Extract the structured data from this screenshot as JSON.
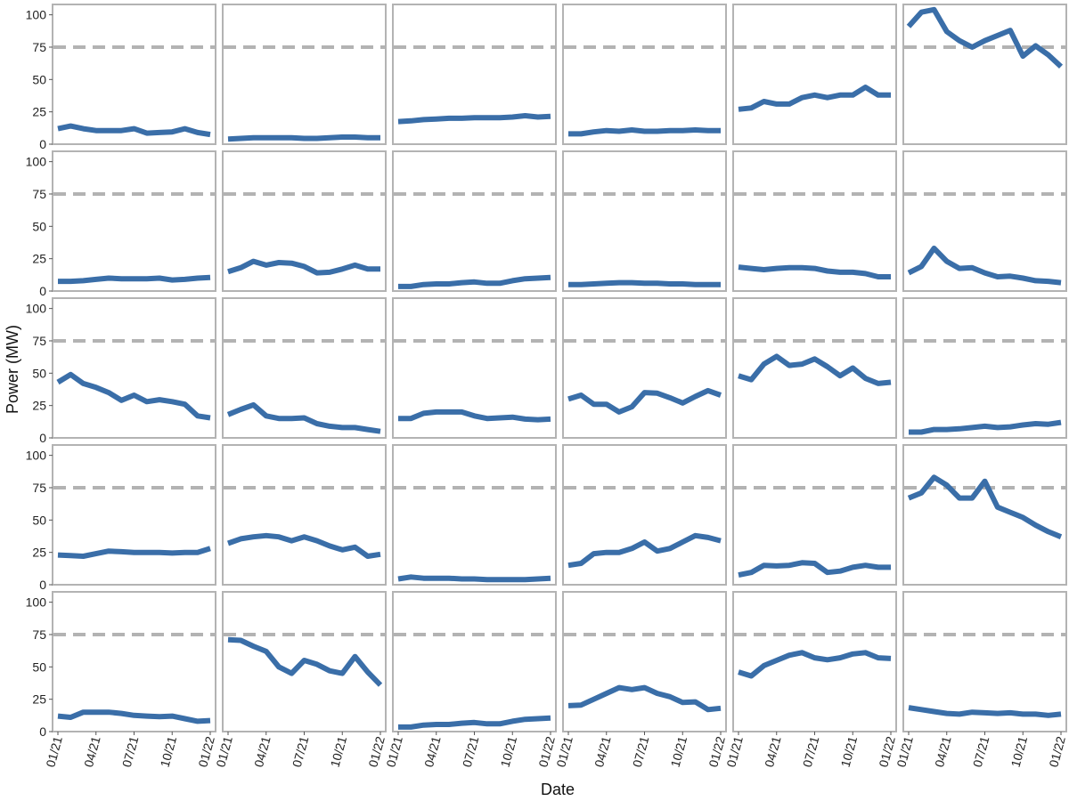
{
  "chart_data": {
    "type": "line",
    "layout": "small-multiples grid, 5 rows x 6 columns, shared axes",
    "xlabel": "Date",
    "ylabel": "Power (MW)",
    "x_tick_labels": [
      "01/21",
      "04/21",
      "07/21",
      "10/21",
      "01/22"
    ],
    "xlim": [
      "2021-01-01",
      "2022-01-01"
    ],
    "x": [
      "2021-01-01",
      "2021-02-01",
      "2021-03-01",
      "2021-04-01",
      "2021-05-01",
      "2021-06-01",
      "2021-07-01",
      "2021-08-01",
      "2021-09-01",
      "2021-10-01",
      "2021-11-01",
      "2021-12-01",
      "2022-01-01"
    ],
    "y_ticks": [
      0,
      25,
      50,
      75,
      100
    ],
    "ylim": [
      0,
      108
    ],
    "reference_line": {
      "value": 75,
      "style": "dashed"
    },
    "grid": false,
    "colors": {
      "series": "#3a6ea8",
      "reference": "#b3b3b3",
      "panel_border": "#b3b3b3"
    },
    "panels": [
      {
        "values": [
          12,
          14,
          12,
          10.5,
          10.5,
          10.5,
          12,
          8.5,
          9,
          9.5,
          12,
          9,
          7.5
        ]
      },
      {
        "values": [
          4,
          4.5,
          5,
          5,
          5,
          5,
          4.5,
          4.5,
          5,
          5.5,
          5.5,
          5,
          5
        ]
      },
      {
        "values": [
          17.5,
          18,
          19,
          19.5,
          20,
          20,
          20.5,
          20.5,
          20.5,
          21,
          22,
          21,
          21.5
        ]
      },
      {
        "values": [
          8,
          8,
          9.5,
          10.5,
          10,
          11,
          10,
          10,
          10.5,
          10.5,
          11,
          10.5,
          10.5
        ]
      },
      {
        "values": [
          27,
          28,
          33,
          31,
          31,
          36,
          38,
          36,
          38,
          38,
          44,
          38,
          38
        ]
      },
      {
        "values": [
          91,
          102,
          104,
          87,
          80,
          75,
          80,
          84,
          88,
          68,
          76,
          69,
          60
        ]
      },
      {
        "values": [
          7.5,
          7.5,
          8,
          9,
          10,
          9.5,
          9.5,
          9.5,
          10,
          8.5,
          9,
          10,
          10.5
        ]
      },
      {
        "values": [
          15,
          18,
          23,
          20,
          22,
          21.5,
          19,
          14,
          14.5,
          17,
          20,
          17,
          17
        ]
      },
      {
        "values": [
          3.5,
          3.5,
          5,
          5.5,
          5.5,
          6.5,
          7,
          6,
          6,
          8,
          9.5,
          10,
          10.5
        ]
      },
      {
        "values": [
          5,
          5,
          5.5,
          6,
          6.5,
          6.5,
          6,
          6,
          5.5,
          5.5,
          5,
          5,
          5
        ]
      },
      {
        "values": [
          18.5,
          17.5,
          16.5,
          17.5,
          18,
          18,
          17.5,
          15.5,
          14.5,
          14.5,
          13.5,
          11,
          11
        ]
      },
      {
        "values": [
          14,
          19,
          33,
          23,
          17.5,
          18,
          14,
          11,
          11.5,
          10,
          8,
          7.5,
          6.5
        ]
      },
      {
        "values": [
          43,
          49,
          42,
          39,
          35,
          29,
          33,
          28,
          29.5,
          28,
          26,
          17,
          15.5
        ]
      },
      {
        "values": [
          18,
          22,
          25.5,
          17,
          15,
          15,
          15.5,
          11,
          9,
          8,
          8,
          6.5,
          5
        ]
      },
      {
        "values": [
          15,
          15,
          19,
          20,
          20,
          20,
          17,
          15,
          15.5,
          16,
          14.5,
          14,
          14.5
        ]
      },
      {
        "values": [
          30,
          33,
          26,
          26,
          20,
          24,
          35,
          34.5,
          31,
          27,
          32,
          36.5,
          33
        ]
      },
      {
        "values": [
          48,
          45,
          57,
          63,
          56,
          57,
          61,
          55,
          48,
          54,
          46,
          42,
          43
        ]
      },
      {
        "values": [
          4.5,
          4.5,
          6.5,
          6.5,
          7,
          8,
          9,
          8,
          8.5,
          10,
          11,
          10.5,
          12
        ]
      },
      {
        "values": [
          23,
          22.5,
          22,
          24,
          26,
          25.5,
          25,
          25,
          25,
          24.5,
          25,
          25,
          28
        ]
      },
      {
        "values": [
          32,
          35.5,
          37,
          38,
          37,
          34,
          37,
          34,
          30,
          27,
          29,
          22,
          23.5
        ]
      },
      {
        "values": [
          4.5,
          6,
          5,
          5,
          5,
          4.5,
          4.5,
          4,
          4,
          4,
          4,
          4.5,
          5
        ]
      },
      {
        "values": [
          15,
          16.5,
          24,
          25,
          25,
          28,
          33,
          26,
          28,
          33,
          38,
          36.5,
          34
        ]
      },
      {
        "values": [
          7.5,
          9.5,
          15,
          14.5,
          15,
          17,
          16.5,
          9.5,
          10.5,
          13.5,
          15,
          13.5,
          13.5
        ]
      },
      {
        "values": [
          67,
          71,
          83,
          77,
          67,
          67,
          80,
          60,
          56,
          52,
          46,
          41,
          37
        ]
      },
      {
        "values": [
          12,
          11,
          15,
          15,
          15,
          14,
          12.5,
          12,
          11.5,
          12,
          10,
          8,
          8.5
        ]
      },
      {
        "values": [
          71,
          70.5,
          66,
          62,
          50,
          45,
          55,
          52,
          47,
          45,
          58,
          46,
          36
        ]
      },
      {
        "values": [
          3.5,
          3.5,
          5,
          5.5,
          5.5,
          6.5,
          7,
          6,
          6,
          8,
          9.5,
          10,
          10.5
        ]
      },
      {
        "values": [
          20,
          20.5,
          25,
          29.5,
          34,
          32.5,
          34,
          29.5,
          27,
          22.5,
          23,
          17,
          18
        ]
      },
      {
        "values": [
          46,
          43,
          51,
          55,
          59,
          61,
          57,
          55.5,
          57,
          60,
          61,
          57,
          56.5
        ]
      },
      {
        "values": [
          18.5,
          17,
          15.5,
          14,
          13.5,
          15,
          14.5,
          14,
          14.5,
          13.5,
          13.5,
          12.5,
          13.5
        ]
      }
    ]
  }
}
